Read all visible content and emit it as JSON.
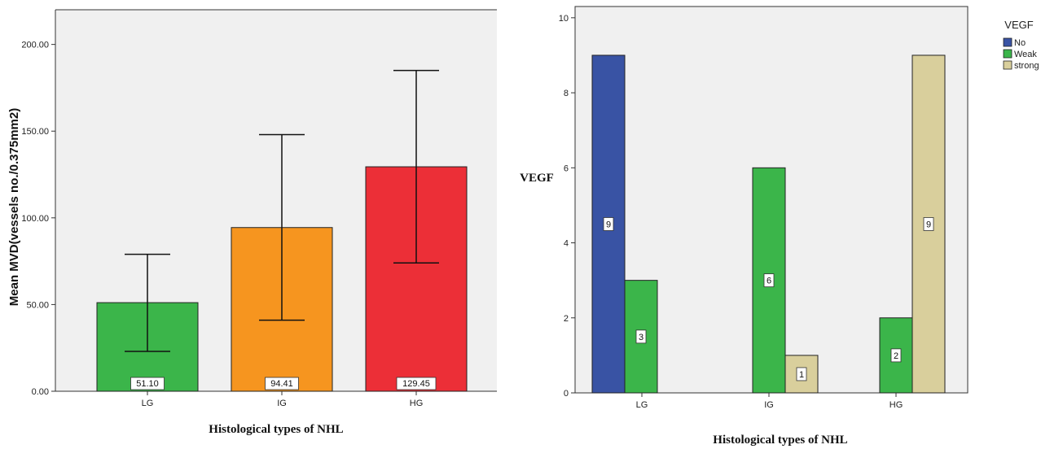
{
  "chart_data": [
    {
      "type": "bar",
      "categories": [
        "LG",
        "IG",
        "HG"
      ],
      "values": [
        51.1,
        94.41,
        129.45
      ],
      "value_labels": [
        "51.10",
        "94.41",
        "129.45"
      ],
      "error_bars": [
        {
          "low": 23,
          "high": 79
        },
        {
          "low": 41,
          "high": 148
        },
        {
          "low": 74,
          "high": 185
        }
      ],
      "colors": [
        "#3bb54a",
        "#f6951f",
        "#ec2f37"
      ],
      "ylabel": "Mean MVD(vessels no./0.375mm2)",
      "xlabel": "Histological types of NHL",
      "ylim": [
        0,
        220
      ],
      "yticks": [
        0,
        50,
        100,
        150,
        200
      ],
      "ytick_labels": [
        "0.00",
        "50.00",
        "100.00",
        "150.00",
        "200.00"
      ],
      "background": "#f0f0f0",
      "grid": false
    },
    {
      "type": "bar",
      "categories": [
        "LG",
        "IG",
        "HG"
      ],
      "series": [
        {
          "name": "No",
          "values": [
            9,
            0,
            0
          ],
          "labels": [
            "9",
            "",
            ""
          ],
          "color": "#3953a4"
        },
        {
          "name": "Weak",
          "values": [
            3,
            6,
            2
          ],
          "labels": [
            "3",
            "6",
            "2"
          ],
          "color": "#3bb54a"
        },
        {
          "name": "strong",
          "values": [
            0,
            1,
            9
          ],
          "labels": [
            "",
            "1",
            "9"
          ],
          "color": "#d9cf9c"
        }
      ],
      "legend_title": "VEGF",
      "legend_position": "top-right",
      "ylabel": "VEGF",
      "xlabel": "Histological types of NHL",
      "ylim": [
        0,
        10.3
      ],
      "yticks": [
        0,
        2,
        4,
        6,
        8,
        10
      ],
      "ytick_labels": [
        "0",
        "2",
        "4",
        "6",
        "8",
        "10"
      ],
      "background": "#f0f0f0",
      "grid": false
    }
  ]
}
